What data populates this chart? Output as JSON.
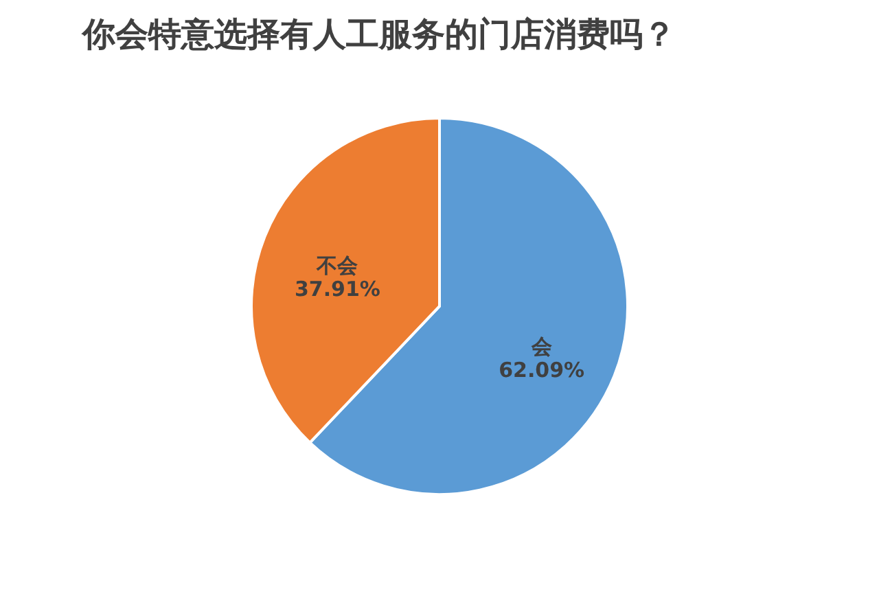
{
  "chart_data": {
    "type": "pie",
    "title": "你会特意选择有人工服务的门店消费吗？",
    "categories": [
      "会",
      "不会"
    ],
    "values": [
      62.09,
      37.91
    ],
    "colors": [
      "#5b9bd5",
      "#ed7d31"
    ],
    "value_labels": [
      "62.09%",
      "37.91%"
    ],
    "legend": false
  }
}
